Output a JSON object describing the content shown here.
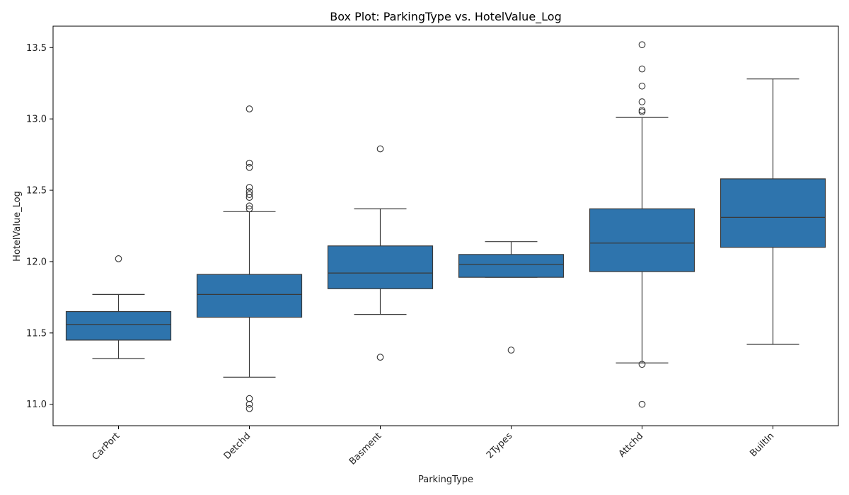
{
  "chart_data": {
    "type": "box",
    "title": "Box Plot: ParkingType vs. HotelValue_Log",
    "xlabel": "ParkingType",
    "ylabel": "HotelValue_Log",
    "ylim": [
      10.85,
      13.65
    ],
    "yticks": [
      11.0,
      11.5,
      12.0,
      12.5,
      13.0,
      13.5
    ],
    "ytick_labels": [
      "11.0",
      "11.5",
      "12.0",
      "12.5",
      "13.0",
      "13.5"
    ],
    "grid": false,
    "box_color": "#2e74ad",
    "line_color": "#3a3a3a",
    "categories": [
      "CarPort",
      "Detchd",
      "Basment",
      "2Types",
      "Attchd",
      "BuiltIn"
    ],
    "boxes": [
      {
        "category": "CarPort",
        "whisker_low": 11.32,
        "q1": 11.45,
        "median": 11.56,
        "q3": 11.65,
        "whisker_high": 11.77,
        "outliers": [
          12.02
        ]
      },
      {
        "category": "Detchd",
        "whisker_low": 11.19,
        "q1": 11.61,
        "median": 11.77,
        "q3": 11.91,
        "whisker_high": 12.35,
        "outliers": [
          11.04,
          11.0,
          10.97,
          12.37,
          12.39,
          12.45,
          12.47,
          12.49,
          12.52,
          12.66,
          12.69,
          13.07
        ]
      },
      {
        "category": "Basment",
        "whisker_low": 11.63,
        "q1": 11.81,
        "median": 11.92,
        "q3": 12.11,
        "whisker_high": 12.37,
        "outliers": [
          11.33,
          12.79
        ]
      },
      {
        "category": "2Types",
        "whisker_low": 11.89,
        "q1": 11.89,
        "median": 11.98,
        "q3": 12.05,
        "whisker_high": 12.14,
        "outliers": [
          11.38
        ]
      },
      {
        "category": "Attchd",
        "whisker_low": 11.29,
        "q1": 11.93,
        "median": 12.13,
        "q3": 12.37,
        "whisker_high": 13.01,
        "outliers": [
          11.28,
          11.0,
          13.05,
          13.06,
          13.12,
          13.23,
          13.35,
          13.52
        ]
      },
      {
        "category": "BuiltIn",
        "whisker_low": 11.42,
        "q1": 12.1,
        "median": 12.31,
        "q3": 12.58,
        "whisker_high": 13.28,
        "outliers": []
      }
    ]
  }
}
